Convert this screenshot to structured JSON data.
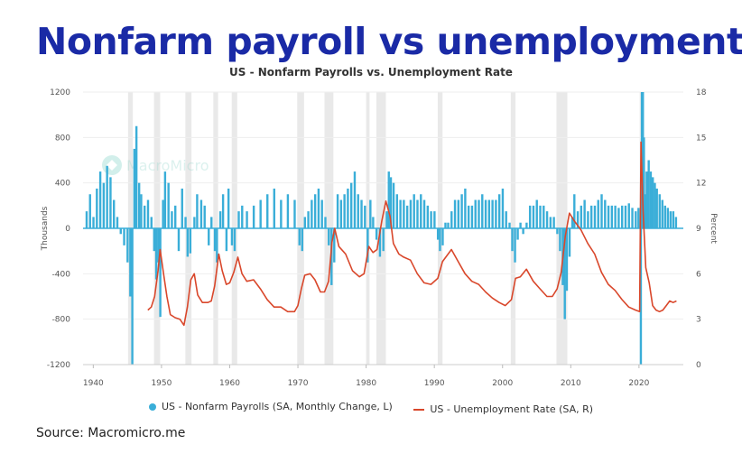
{
  "title": "Nonfarm payroll vs unemployment",
  "source": "Source: Macromicro.me",
  "colors": {
    "title": "#1a2aa6",
    "payrolls": "#3aaed8",
    "unemployment": "#d9472b",
    "recession": "#e9e9e9"
  },
  "chart_data": {
    "type": "bar+line",
    "title": "US - Nonfarm Payrolls vs. Unemployment Rate",
    "watermark": "MacroMicro",
    "ylabel_left": "Thousands",
    "ylabel_right": "Percent",
    "xlim": [
      1938.5,
      2026.5
    ],
    "ylim_left": [
      -1200,
      1200
    ],
    "ylim_right": [
      0,
      18
    ],
    "yticks_left": [
      1200,
      800,
      400,
      0,
      -400,
      -800,
      -1200
    ],
    "yticks_right": [
      18,
      15,
      12,
      9,
      6,
      3,
      0
    ],
    "xticks": [
      1940,
      1950,
      1960,
      1970,
      1980,
      1990,
      2000,
      2010,
      2020
    ],
    "grid": true,
    "legend_position": "bottom",
    "recessions": [
      [
        1945.1,
        1945.8
      ],
      [
        1948.9,
        1949.8
      ],
      [
        1953.5,
        1954.4
      ],
      [
        1957.6,
        1958.3
      ],
      [
        1960.3,
        1961.1
      ],
      [
        1969.9,
        1970.9
      ],
      [
        1973.9,
        1975.2
      ],
      [
        1980.0,
        1980.5
      ],
      [
        1981.5,
        1982.9
      ],
      [
        1990.5,
        1991.2
      ],
      [
        2001.2,
        2001.9
      ],
      [
        2007.9,
        2009.5
      ],
      [
        2020.1,
        2020.4
      ]
    ],
    "series": [
      {
        "name": "US - Nonfarm Payrolls (SA, Monthly Change, L)",
        "type": "bar",
        "points": [
          [
            1939.0,
            150
          ],
          [
            1939.5,
            300
          ],
          [
            1940.0,
            100
          ],
          [
            1940.5,
            350
          ],
          [
            1941.0,
            500
          ],
          [
            1941.5,
            400
          ],
          [
            1942.0,
            550
          ],
          [
            1942.5,
            450
          ],
          [
            1943.0,
            250
          ],
          [
            1943.5,
            100
          ],
          [
            1944.0,
            -50
          ],
          [
            1944.5,
            -150
          ],
          [
            1945.0,
            -300
          ],
          [
            1945.4,
            -600
          ],
          [
            1945.7,
            -1200
          ],
          [
            1946.0,
            700
          ],
          [
            1946.3,
            900
          ],
          [
            1946.7,
            400
          ],
          [
            1947.0,
            300
          ],
          [
            1947.5,
            200
          ],
          [
            1948.0,
            250
          ],
          [
            1948.5,
            100
          ],
          [
            1948.9,
            -200
          ],
          [
            1949.2,
            -450
          ],
          [
            1949.5,
            -300
          ],
          [
            1949.8,
            -780
          ],
          [
            1950.2,
            250
          ],
          [
            1950.5,
            500
          ],
          [
            1951.0,
            400
          ],
          [
            1951.5,
            150
          ],
          [
            1952.0,
            200
          ],
          [
            1952.5,
            -200
          ],
          [
            1953.0,
            350
          ],
          [
            1953.5,
            100
          ],
          [
            1953.8,
            -250
          ],
          [
            1954.2,
            -220
          ],
          [
            1954.8,
            100
          ],
          [
            1955.2,
            300
          ],
          [
            1955.8,
            250
          ],
          [
            1956.3,
            200
          ],
          [
            1956.9,
            -150
          ],
          [
            1957.3,
            100
          ],
          [
            1957.8,
            -200
          ],
          [
            1958.1,
            -300
          ],
          [
            1958.6,
            150
          ],
          [
            1959.0,
            300
          ],
          [
            1959.5,
            -200
          ],
          [
            1959.8,
            350
          ],
          [
            1960.3,
            -150
          ],
          [
            1960.7,
            -200
          ],
          [
            1961.3,
            150
          ],
          [
            1961.8,
            200
          ],
          [
            1962.5,
            150
          ],
          [
            1963.5,
            200
          ],
          [
            1964.5,
            250
          ],
          [
            1965.5,
            300
          ],
          [
            1966.5,
            350
          ],
          [
            1967.5,
            250
          ],
          [
            1968.5,
            300
          ],
          [
            1969.5,
            250
          ],
          [
            1970.2,
            -150
          ],
          [
            1970.6,
            -200
          ],
          [
            1971.0,
            100
          ],
          [
            1971.5,
            150
          ],
          [
            1972.0,
            250
          ],
          [
            1972.5,
            300
          ],
          [
            1973.0,
            350
          ],
          [
            1973.5,
            250
          ],
          [
            1974.0,
            100
          ],
          [
            1974.5,
            -150
          ],
          [
            1974.9,
            -500
          ],
          [
            1975.3,
            -300
          ],
          [
            1975.8,
            300
          ],
          [
            1976.3,
            250
          ],
          [
            1976.8,
            300
          ],
          [
            1977.3,
            350
          ],
          [
            1977.8,
            400
          ],
          [
            1978.3,
            500
          ],
          [
            1978.8,
            300
          ],
          [
            1979.3,
            250
          ],
          [
            1979.8,
            200
          ],
          [
            1980.2,
            -300
          ],
          [
            1980.6,
            250
          ],
          [
            1981.0,
            100
          ],
          [
            1981.5,
            -100
          ],
          [
            1982.0,
            -250
          ],
          [
            1982.5,
            -200
          ],
          [
            1983.0,
            150
          ],
          [
            1983.3,
            500
          ],
          [
            1983.6,
            450
          ],
          [
            1984.0,
            400
          ],
          [
            1984.5,
            300
          ],
          [
            1985.0,
            250
          ],
          [
            1985.5,
            250
          ],
          [
            1986.0,
            200
          ],
          [
            1986.5,
            250
          ],
          [
            1987.0,
            300
          ],
          [
            1987.5,
            250
          ],
          [
            1988.0,
            300
          ],
          [
            1988.5,
            250
          ],
          [
            1989.0,
            200
          ],
          [
            1989.5,
            150
          ],
          [
            1990.0,
            150
          ],
          [
            1990.5,
            -100
          ],
          [
            1990.8,
            -200
          ],
          [
            1991.2,
            -150
          ],
          [
            1991.6,
            50
          ],
          [
            1992.0,
            50
          ],
          [
            1992.5,
            150
          ],
          [
            1993.0,
            250
          ],
          [
            1993.5,
            250
          ],
          [
            1994.0,
            300
          ],
          [
            1994.5,
            350
          ],
          [
            1995.0,
            200
          ],
          [
            1995.5,
            200
          ],
          [
            1996.0,
            250
          ],
          [
            1996.5,
            250
          ],
          [
            1997.0,
            300
          ],
          [
            1997.5,
            250
          ],
          [
            1998.0,
            250
          ],
          [
            1998.5,
            250
          ],
          [
            1999.0,
            250
          ],
          [
            1999.5,
            300
          ],
          [
            2000.0,
            350
          ],
          [
            2000.5,
            150
          ],
          [
            2001.0,
            50
          ],
          [
            2001.4,
            -200
          ],
          [
            2001.8,
            -300
          ],
          [
            2002.2,
            -100
          ],
          [
            2002.6,
            50
          ],
          [
            2003.0,
            -50
          ],
          [
            2003.5,
            50
          ],
          [
            2004.0,
            200
          ],
          [
            2004.5,
            200
          ],
          [
            2005.0,
            250
          ],
          [
            2005.5,
            200
          ],
          [
            2006.0,
            200
          ],
          [
            2006.5,
            150
          ],
          [
            2007.0,
            100
          ],
          [
            2007.5,
            100
          ],
          [
            2008.0,
            -50
          ],
          [
            2008.4,
            -200
          ],
          [
            2008.8,
            -500
          ],
          [
            2009.1,
            -800
          ],
          [
            2009.4,
            -550
          ],
          [
            2009.8,
            -250
          ],
          [
            2010.2,
            100
          ],
          [
            2010.5,
            300
          ],
          [
            2011.0,
            150
          ],
          [
            2011.5,
            200
          ],
          [
            2012.0,
            250
          ],
          [
            2012.5,
            150
          ],
          [
            2013.0,
            200
          ],
          [
            2013.5,
            200
          ],
          [
            2014.0,
            250
          ],
          [
            2014.5,
            300
          ],
          [
            2015.0,
            250
          ],
          [
            2015.5,
            200
          ],
          [
            2016.0,
            200
          ],
          [
            2016.5,
            200
          ],
          [
            2017.0,
            180
          ],
          [
            2017.5,
            200
          ],
          [
            2018.0,
            200
          ],
          [
            2018.5,
            220
          ],
          [
            2019.0,
            180
          ],
          [
            2019.5,
            150
          ],
          [
            2019.9,
            180
          ],
          [
            2020.25,
            -1200
          ],
          [
            2020.4,
            1200
          ],
          [
            2020.55,
            1200
          ],
          [
            2020.7,
            800
          ],
          [
            2020.9,
            300
          ],
          [
            2021.1,
            500
          ],
          [
            2021.4,
            600
          ],
          [
            2021.7,
            500
          ],
          [
            2022.0,
            450
          ],
          [
            2022.3,
            400
          ],
          [
            2022.6,
            350
          ],
          [
            2023.0,
            300
          ],
          [
            2023.4,
            250
          ],
          [
            2023.8,
            200
          ],
          [
            2024.2,
            180
          ],
          [
            2024.6,
            150
          ],
          [
            2025.0,
            150
          ],
          [
            2025.4,
            100
          ]
        ]
      },
      {
        "name": "US - Unemployment Rate (SA, R)",
        "type": "line",
        "points": [
          [
            1948.0,
            3.6
          ],
          [
            1948.5,
            3.8
          ],
          [
            1949.0,
            4.5
          ],
          [
            1949.5,
            6.2
          ],
          [
            1949.8,
            7.6
          ],
          [
            1950.3,
            6.0
          ],
          [
            1950.8,
            4.5
          ],
          [
            1951.3,
            3.3
          ],
          [
            1952.0,
            3.1
          ],
          [
            1952.7,
            3.0
          ],
          [
            1953.3,
            2.6
          ],
          [
            1953.8,
            3.8
          ],
          [
            1954.3,
            5.6
          ],
          [
            1954.8,
            6.0
          ],
          [
            1955.3,
            4.6
          ],
          [
            1956.0,
            4.1
          ],
          [
            1956.8,
            4.1
          ],
          [
            1957.3,
            4.2
          ],
          [
            1957.8,
            5.2
          ],
          [
            1958.4,
            7.3
          ],
          [
            1958.9,
            6.2
          ],
          [
            1959.5,
            5.3
          ],
          [
            1960.0,
            5.4
          ],
          [
            1960.6,
            6.1
          ],
          [
            1961.2,
            7.1
          ],
          [
            1961.8,
            6.0
          ],
          [
            1962.5,
            5.5
          ],
          [
            1963.5,
            5.6
          ],
          [
            1964.5,
            5.0
          ],
          [
            1965.5,
            4.3
          ],
          [
            1966.5,
            3.8
          ],
          [
            1967.5,
            3.8
          ],
          [
            1968.5,
            3.5
          ],
          [
            1969.5,
            3.5
          ],
          [
            1970.0,
            3.9
          ],
          [
            1970.5,
            5.0
          ],
          [
            1971.0,
            5.9
          ],
          [
            1971.8,
            6.0
          ],
          [
            1972.5,
            5.6
          ],
          [
            1973.3,
            4.8
          ],
          [
            1973.9,
            4.8
          ],
          [
            1974.5,
            5.5
          ],
          [
            1975.0,
            8.1
          ],
          [
            1975.4,
            9.0
          ],
          [
            1976.0,
            7.8
          ],
          [
            1977.0,
            7.3
          ],
          [
            1978.0,
            6.2
          ],
          [
            1979.0,
            5.8
          ],
          [
            1979.7,
            6.0
          ],
          [
            1980.4,
            7.8
          ],
          [
            1981.0,
            7.4
          ],
          [
            1981.6,
            7.6
          ],
          [
            1982.3,
            9.5
          ],
          [
            1982.9,
            10.8
          ],
          [
            1983.5,
            9.8
          ],
          [
            1984.0,
            8.0
          ],
          [
            1984.8,
            7.3
          ],
          [
            1985.5,
            7.1
          ],
          [
            1986.5,
            6.9
          ],
          [
            1987.5,
            6.0
          ],
          [
            1988.5,
            5.4
          ],
          [
            1989.5,
            5.3
          ],
          [
            1990.5,
            5.7
          ],
          [
            1991.2,
            6.8
          ],
          [
            1992.5,
            7.6
          ],
          [
            1993.5,
            6.8
          ],
          [
            1994.5,
            6.0
          ],
          [
            1995.5,
            5.5
          ],
          [
            1996.5,
            5.3
          ],
          [
            1997.5,
            4.8
          ],
          [
            1998.5,
            4.4
          ],
          [
            1999.5,
            4.1
          ],
          [
            2000.4,
            3.9
          ],
          [
            2001.3,
            4.3
          ],
          [
            2001.9,
            5.7
          ],
          [
            2002.6,
            5.8
          ],
          [
            2003.5,
            6.3
          ],
          [
            2004.5,
            5.5
          ],
          [
            2005.5,
            5.0
          ],
          [
            2006.5,
            4.5
          ],
          [
            2007.3,
            4.5
          ],
          [
            2008.0,
            5.0
          ],
          [
            2008.6,
            6.1
          ],
          [
            2009.2,
            8.5
          ],
          [
            2009.8,
            10.0
          ],
          [
            2010.5,
            9.5
          ],
          [
            2011.5,
            8.9
          ],
          [
            2012.5,
            8.0
          ],
          [
            2013.5,
            7.3
          ],
          [
            2014.5,
            6.1
          ],
          [
            2015.5,
            5.3
          ],
          [
            2016.5,
            4.9
          ],
          [
            2017.5,
            4.3
          ],
          [
            2018.5,
            3.8
          ],
          [
            2019.5,
            3.6
          ],
          [
            2020.1,
            3.5
          ],
          [
            2020.3,
            14.7
          ],
          [
            2020.6,
            10.2
          ],
          [
            2021.0,
            6.4
          ],
          [
            2021.5,
            5.4
          ],
          [
            2022.0,
            3.9
          ],
          [
            2022.5,
            3.6
          ],
          [
            2023.0,
            3.5
          ],
          [
            2023.5,
            3.6
          ],
          [
            2024.0,
            3.9
          ],
          [
            2024.5,
            4.2
          ],
          [
            2025.0,
            4.1
          ],
          [
            2025.5,
            4.2
          ]
        ]
      }
    ]
  }
}
